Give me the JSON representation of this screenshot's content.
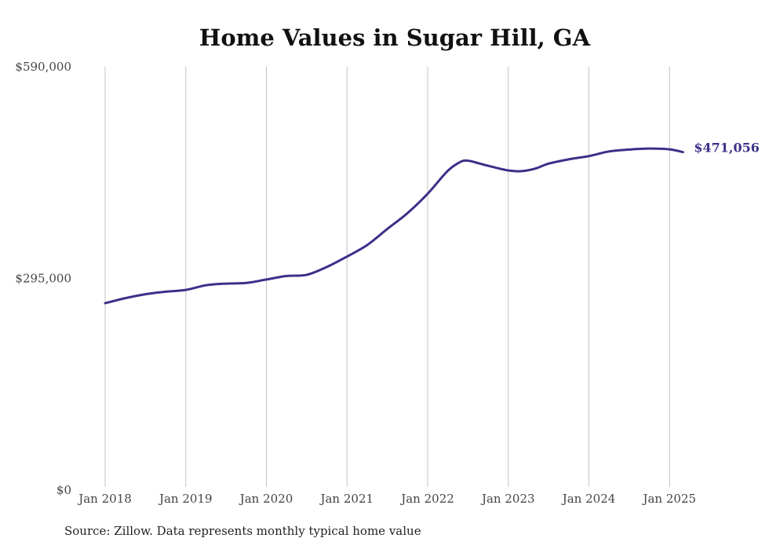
{
  "chart_data": {
    "type": "line",
    "title": "Home Values in Sugar Hill, GA",
    "xlabel": "",
    "ylabel": "",
    "ylim": [
      0,
      590000
    ],
    "y_ticks": [
      {
        "value": 0,
        "label": "$0"
      },
      {
        "value": 295000,
        "label": "$295,000"
      },
      {
        "value": 590000,
        "label": "$590,000"
      }
    ],
    "x_ticks": [
      {
        "value": "2018-01",
        "label": "Jan 2018"
      },
      {
        "value": "2019-01",
        "label": "Jan 2019"
      },
      {
        "value": "2020-01",
        "label": "Jan 2020"
      },
      {
        "value": "2021-01",
        "label": "Jan 2021"
      },
      {
        "value": "2022-01",
        "label": "Jan 2022"
      },
      {
        "value": "2023-01",
        "label": "Jan 2023"
      },
      {
        "value": "2024-01",
        "label": "Jan 2024"
      },
      {
        "value": "2025-01",
        "label": "Jan 2025"
      }
    ],
    "grid": {
      "vertical": true,
      "horizontal": false
    },
    "legend": "none",
    "series": [
      {
        "color": "#3b3089",
        "end_label": "$471,056",
        "x": [
          "2018-01",
          "2018-04",
          "2018-07",
          "2018-10",
          "2019-01",
          "2019-04",
          "2019-07",
          "2019-10",
          "2020-01",
          "2020-04",
          "2020-07",
          "2020-10",
          "2021-01",
          "2021-04",
          "2021-07",
          "2021-10",
          "2022-01",
          "2022-04",
          "2022-06",
          "2022-07",
          "2022-08",
          "2022-10",
          "2023-01",
          "2023-03",
          "2023-05",
          "2023-07",
          "2023-10",
          "2024-01",
          "2024-04",
          "2024-07",
          "2024-10",
          "2025-01",
          "2025-03"
        ],
        "values": [
          260500,
          267500,
          273000,
          276500,
          279000,
          285500,
          287800,
          288700,
          293500,
          298400,
          300000,
          311000,
          325500,
          341500,
          364000,
          386000,
          413000,
          445000,
          458000,
          459000,
          457000,
          452000,
          445500,
          444500,
          448000,
          455000,
          461000,
          465500,
          472000,
          474600,
          476000,
          474900,
          471056
        ]
      }
    ]
  },
  "source": "Source: Zillow. Data represents monthly typical home value"
}
